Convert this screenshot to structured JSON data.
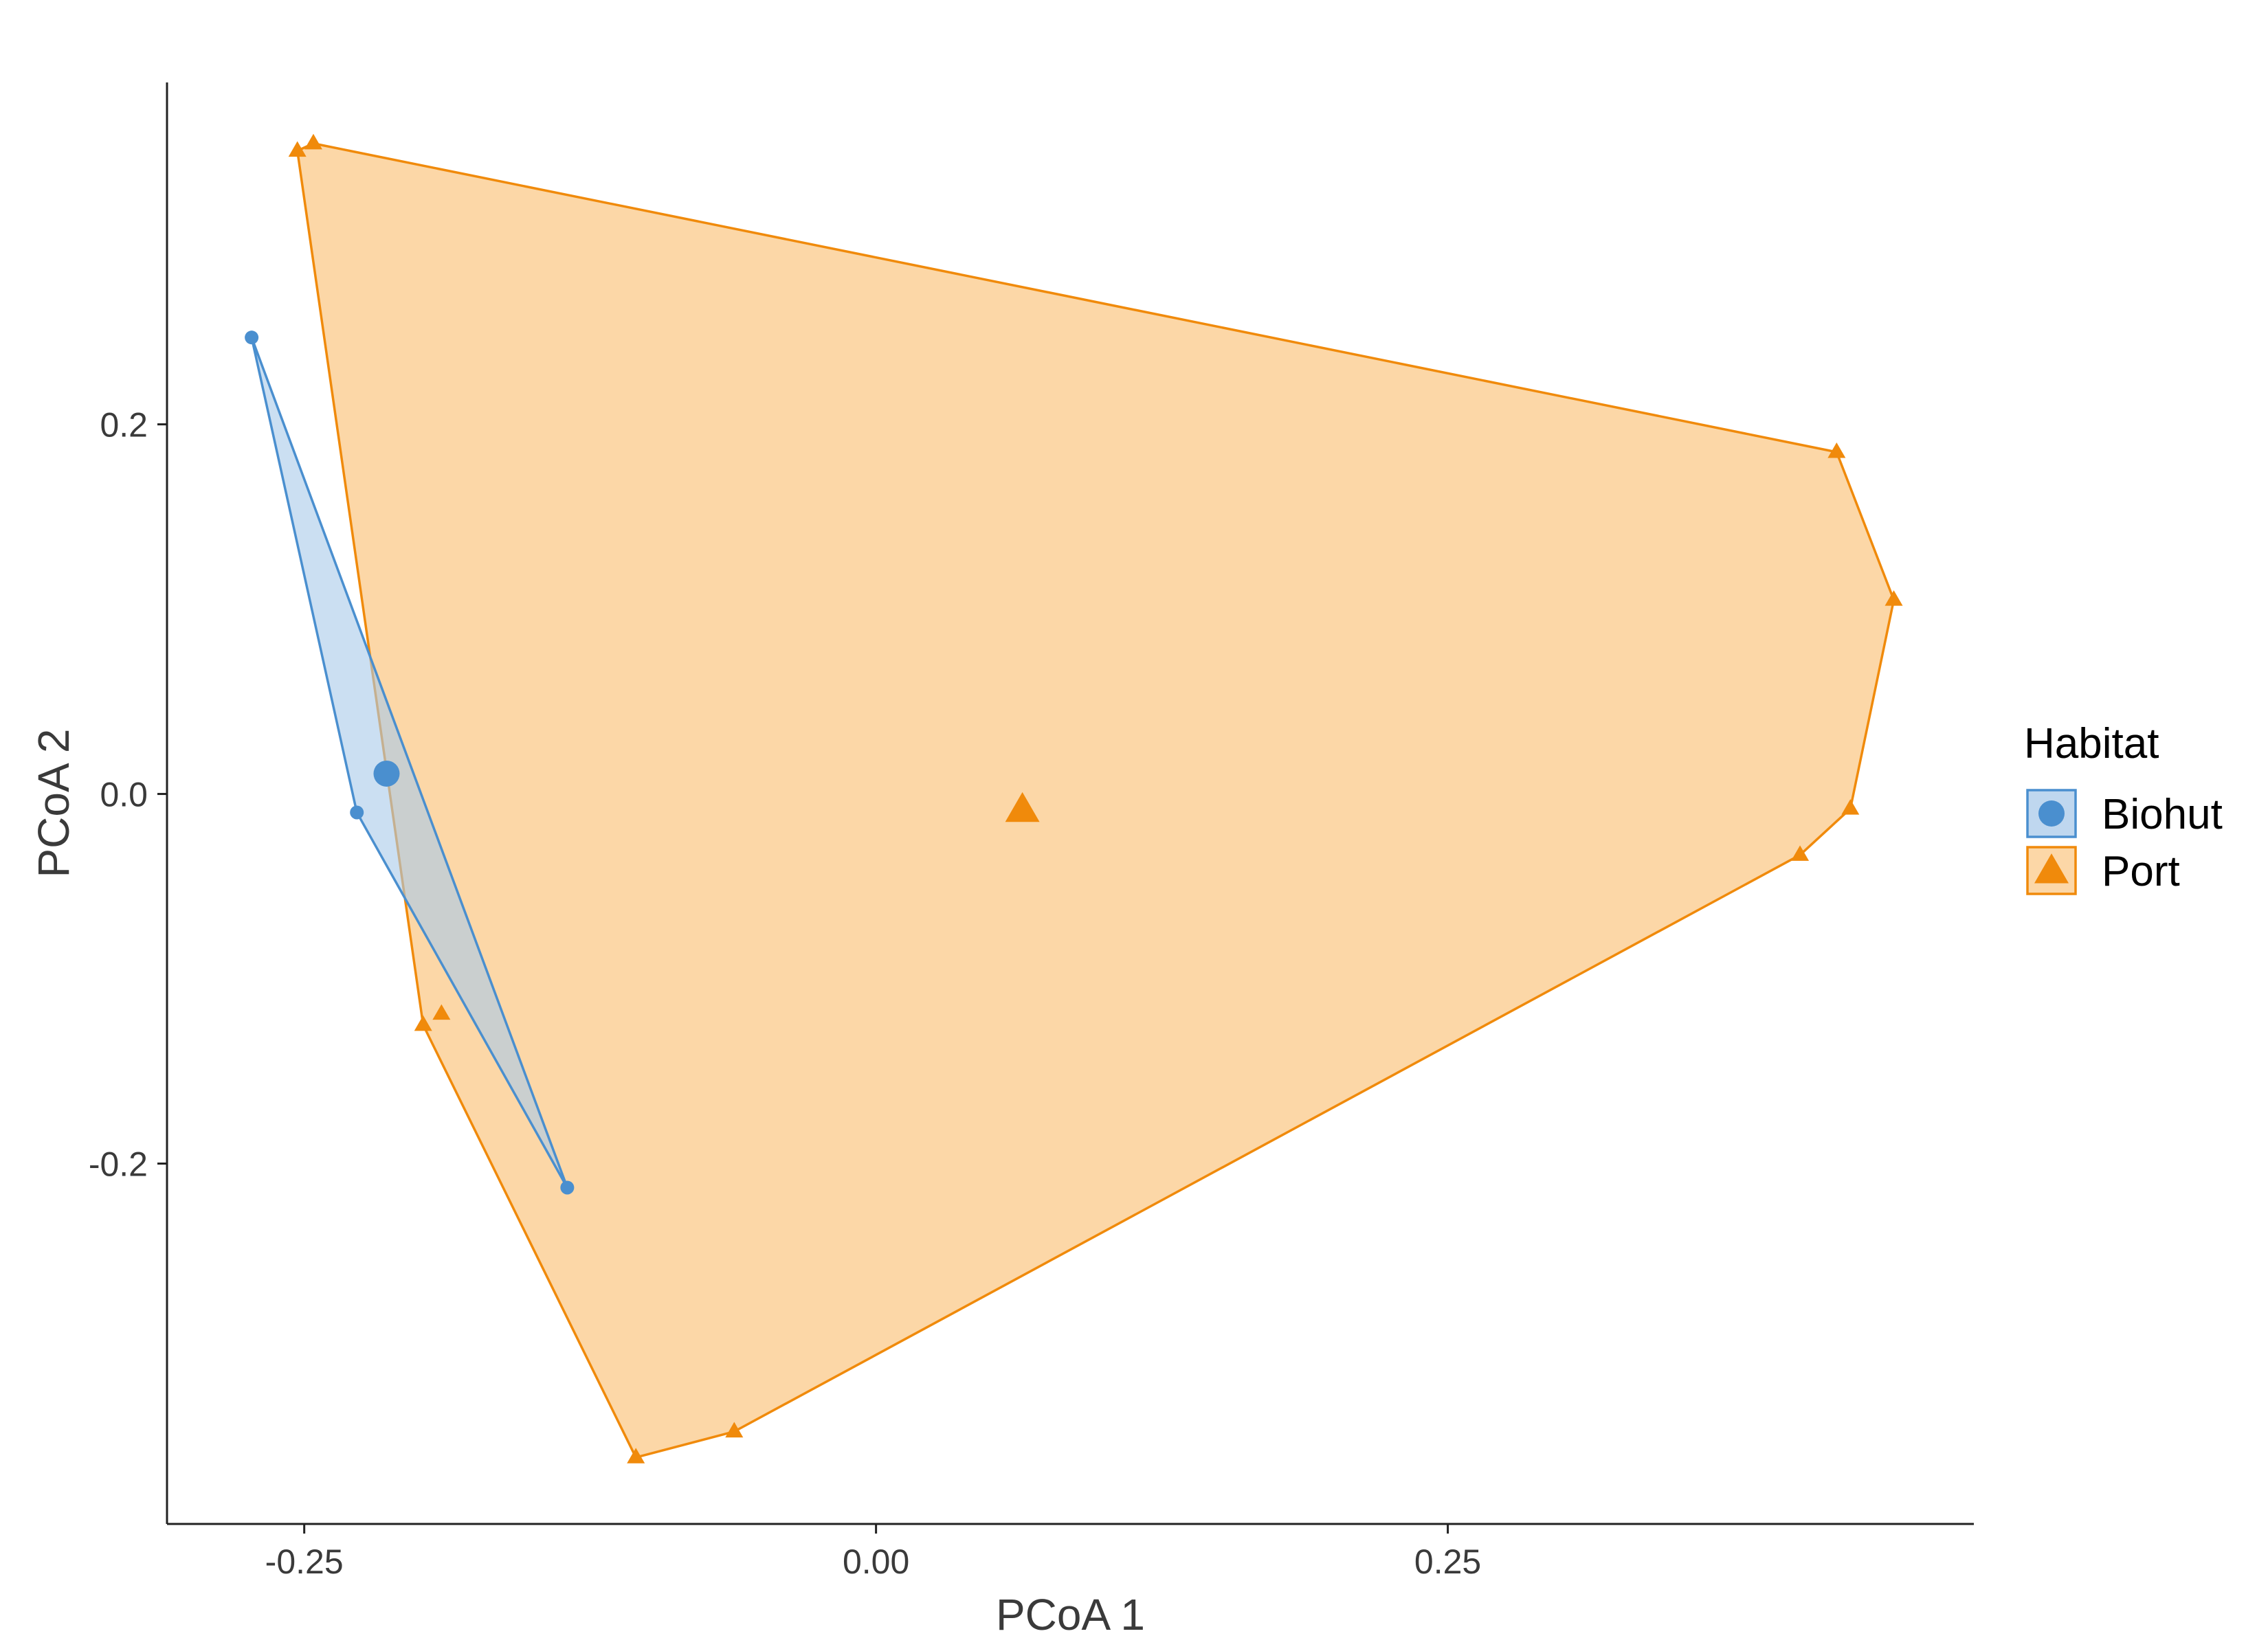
{
  "chart_data": {
    "type": "scatter",
    "title": "",
    "xlabel": "PCoA 1",
    "ylabel": "PCoA 2",
    "xlim": [
      -0.31,
      0.48
    ],
    "ylim": [
      -0.395,
      0.385
    ],
    "x_ticks": [
      {
        "value": -0.25,
        "label": "-0.25"
      },
      {
        "value": 0.0,
        "label": "0.00"
      },
      {
        "value": 0.25,
        "label": "0.25"
      }
    ],
    "y_ticks": [
      {
        "value": 0.2,
        "label": "0.2"
      },
      {
        "value": 0.0,
        "label": "0.0"
      },
      {
        "value": -0.2,
        "label": "-0.2"
      }
    ],
    "grid": false,
    "legend": {
      "title": "Habitat",
      "position": "right"
    },
    "series": [
      {
        "name": "Biohut",
        "color": "#4a8fcf",
        "fill": "#a9c9ea",
        "shape": "circle",
        "points": [
          {
            "x": -0.273,
            "y": 0.247
          },
          {
            "x": -0.227,
            "y": -0.01
          },
          {
            "x": -0.135,
            "y": -0.213
          }
        ],
        "hull": [
          {
            "x": -0.273,
            "y": 0.247
          },
          {
            "x": -0.135,
            "y": -0.213
          },
          {
            "x": -0.227,
            "y": -0.01
          }
        ],
        "centroid": {
          "x": -0.214,
          "y": 0.011
        }
      },
      {
        "name": "Port",
        "color": "#f08a0b",
        "fill": "#fbc98a",
        "shape": "triangle",
        "points": [
          {
            "x": -0.253,
            "y": 0.348
          },
          {
            "x": -0.246,
            "y": 0.352
          },
          {
            "x": 0.42,
            "y": 0.185
          },
          {
            "x": 0.445,
            "y": 0.105
          },
          {
            "x": 0.426,
            "y": -0.008
          },
          {
            "x": 0.404,
            "y": -0.033
          },
          {
            "x": -0.198,
            "y": -0.125
          },
          {
            "x": -0.19,
            "y": -0.119
          },
          {
            "x": -0.105,
            "y": -0.359
          },
          {
            "x": -0.062,
            "y": -0.345
          }
        ],
        "hull": [
          {
            "x": -0.253,
            "y": 0.348
          },
          {
            "x": -0.246,
            "y": 0.352
          },
          {
            "x": 0.42,
            "y": 0.185
          },
          {
            "x": 0.445,
            "y": 0.105
          },
          {
            "x": 0.426,
            "y": -0.008
          },
          {
            "x": 0.404,
            "y": -0.033
          },
          {
            "x": -0.062,
            "y": -0.345
          },
          {
            "x": -0.105,
            "y": -0.359
          },
          {
            "x": -0.198,
            "y": -0.125
          }
        ],
        "centroid": {
          "x": 0.064,
          "y": -0.009
        }
      }
    ]
  }
}
